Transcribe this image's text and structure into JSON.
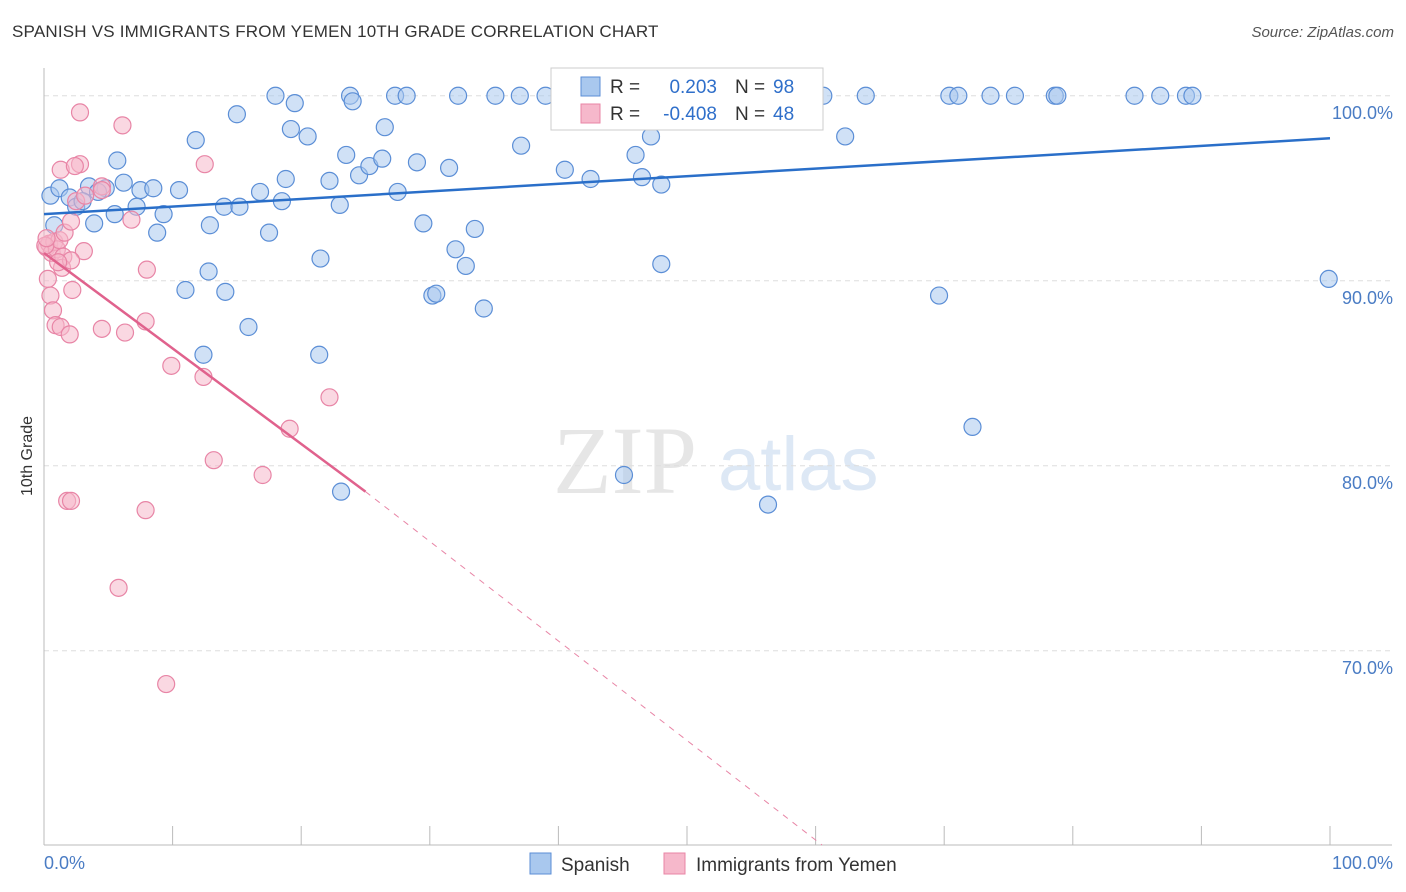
{
  "title": "SPANISH VS IMMIGRANTS FROM YEMEN 10TH GRADE CORRELATION CHART",
  "source": "Source: ZipAtlas.com",
  "watermark": {
    "zip": "ZIP",
    "atlas": "atlas"
  },
  "colors": {
    "spanish_fill": "#a9c8ee",
    "spanish_stroke": "#5b8ed6",
    "spanish_line": "#2a6fc9",
    "yemen_fill": "#f6b8cb",
    "yemen_stroke": "#e885a6",
    "yemen_line": "#e0628d",
    "axis_label": "#4a7cc4",
    "grid": "#dddddd"
  },
  "legend": {
    "r_label": "R =",
    "n_label": "N =",
    "spanish_r": "0.203",
    "spanish_n": "98",
    "yemen_r": "-0.408",
    "yemen_n": "48"
  },
  "bottom_legend": {
    "spanish": "Spanish",
    "yemen": "Immigrants from Yemen"
  },
  "chart_data": {
    "type": "scatter",
    "title": "SPANISH VS IMMIGRANTS FROM YEMEN 10TH GRADE CORRELATION CHART",
    "xlabel": "",
    "ylabel": "10th Grade",
    "xlim": [
      0,
      100
    ],
    "ylim": [
      59.5,
      101.5
    ],
    "x_tick_labels": [
      "0.0%",
      "100.0%"
    ],
    "y_ticks": [
      {
        "value": 100,
        "label": "100.0%"
      },
      {
        "value": 90,
        "label": "90.0%"
      },
      {
        "value": 80,
        "label": "80.0%"
      },
      {
        "value": 70,
        "label": "70.0%"
      }
    ],
    "grid": true,
    "legend_position": "top-center",
    "series": [
      {
        "name": "Spanish",
        "r": 0.203,
        "n": 98,
        "trend": {
          "x": [
            0,
            100
          ],
          "y": [
            93.6,
            97.7
          ]
        },
        "points": [
          [
            0.5,
            94.6
          ],
          [
            1.2,
            95.0
          ],
          [
            2.0,
            94.5
          ],
          [
            3.5,
            95.1
          ],
          [
            4.8,
            95.0
          ],
          [
            2.5,
            94.0
          ],
          [
            3.0,
            94.3
          ],
          [
            4.2,
            94.8
          ],
          [
            5.5,
            93.6
          ],
          [
            6.2,
            95.3
          ],
          [
            7.5,
            94.9
          ],
          [
            8.5,
            95.0
          ],
          [
            9.3,
            93.6
          ],
          [
            10.5,
            94.9
          ],
          [
            7.2,
            94.0
          ],
          [
            3.9,
            93.1
          ],
          [
            5.7,
            96.5
          ],
          [
            8.8,
            92.6
          ],
          [
            11.8,
            97.6
          ],
          [
            12.9,
            93.0
          ],
          [
            14.0,
            94.0
          ],
          [
            15.2,
            94.0
          ],
          [
            15.0,
            99.0
          ],
          [
            16.8,
            94.8
          ],
          [
            17.5,
            92.6
          ],
          [
            18.5,
            94.3
          ],
          [
            18.8,
            95.5
          ],
          [
            19.2,
            98.2
          ],
          [
            20.5,
            97.8
          ],
          [
            21.5,
            91.2
          ],
          [
            22.2,
            95.4
          ],
          [
            23.0,
            94.1
          ],
          [
            23.5,
            96.8
          ],
          [
            24.5,
            95.7
          ],
          [
            25.3,
            96.2
          ],
          [
            26.3,
            96.6
          ],
          [
            26.5,
            98.3
          ],
          [
            27.5,
            94.8
          ],
          [
            29.0,
            96.4
          ],
          [
            29.5,
            93.1
          ],
          [
            30.2,
            89.2
          ],
          [
            30.5,
            89.3
          ],
          [
            31.5,
            96.1
          ],
          [
            32.0,
            91.7
          ],
          [
            32.8,
            90.8
          ],
          [
            33.5,
            92.8
          ],
          [
            34.2,
            88.5
          ],
          [
            37.1,
            97.3
          ],
          [
            40.5,
            96.0
          ],
          [
            42.5,
            95.5
          ],
          [
            46.5,
            95.6
          ],
          [
            48.0,
            95.2
          ],
          [
            48.0,
            90.9
          ],
          [
            47.2,
            97.8
          ],
          [
            46.0,
            96.8
          ],
          [
            11.0,
            89.5
          ],
          [
            12.8,
            90.5
          ],
          [
            14.1,
            89.4
          ],
          [
            15.9,
            87.5
          ],
          [
            12.4,
            86.0
          ],
          [
            21.4,
            86.0
          ],
          [
            23.1,
            78.6
          ],
          [
            45.1,
            79.5
          ],
          [
            56.3,
            77.9
          ],
          [
            69.6,
            89.2
          ],
          [
            72.2,
            82.1
          ],
          [
            99.9,
            90.1
          ],
          [
            62.3,
            97.8
          ],
          [
            18.0,
            100.0
          ],
          [
            19.5,
            99.6
          ],
          [
            23.8,
            100.0
          ],
          [
            24.0,
            99.7
          ],
          [
            27.3,
            100.0
          ],
          [
            28.2,
            100.0
          ],
          [
            32.2,
            100.0
          ],
          [
            35.1,
            100.0
          ],
          [
            37.0,
            100.0
          ],
          [
            39.0,
            100.0
          ],
          [
            42.0,
            100.0
          ],
          [
            44.8,
            99.5
          ],
          [
            47.8,
            100.0
          ],
          [
            51.0,
            100.0
          ],
          [
            52.6,
            100.0
          ],
          [
            56.9,
            100.0
          ],
          [
            58.9,
            100.0
          ],
          [
            60.6,
            100.0
          ],
          [
            63.9,
            100.0
          ],
          [
            70.4,
            100.0
          ],
          [
            71.1,
            100.0
          ],
          [
            73.6,
            100.0
          ],
          [
            75.5,
            100.0
          ],
          [
            78.6,
            100.0
          ],
          [
            78.8,
            100.0
          ],
          [
            84.8,
            100.0
          ],
          [
            86.8,
            100.0
          ],
          [
            88.8,
            100.0
          ],
          [
            89.3,
            100.0
          ],
          [
            0.8,
            93.0
          ]
        ]
      },
      {
        "name": "Immigrants from Yemen",
        "r": -0.408,
        "n": 48,
        "trend": {
          "x": [
            0,
            25
          ],
          "y": [
            91.5,
            78.6
          ]
        },
        "trend_dashed": {
          "x": [
            25,
            60.5
          ],
          "y": [
            78.6,
            59.5
          ]
        },
        "points": [
          [
            0.2,
            91.8
          ],
          [
            0.4,
            92.0
          ],
          [
            0.6,
            91.5
          ],
          [
            0.8,
            92.1
          ],
          [
            1.0,
            91.7
          ],
          [
            1.2,
            92.2
          ],
          [
            1.5,
            91.3
          ],
          [
            0.3,
            90.1
          ],
          [
            0.5,
            89.2
          ],
          [
            0.7,
            88.4
          ],
          [
            0.9,
            87.6
          ],
          [
            1.3,
            87.5
          ],
          [
            2.0,
            87.1
          ],
          [
            2.2,
            89.5
          ],
          [
            1.4,
            90.7
          ],
          [
            1.6,
            92.6
          ],
          [
            2.1,
            93.2
          ],
          [
            2.5,
            94.3
          ],
          [
            2.8,
            96.3
          ],
          [
            1.3,
            96.0
          ],
          [
            2.4,
            96.2
          ],
          [
            2.8,
            99.1
          ],
          [
            3.2,
            94.6
          ],
          [
            4.5,
            95.1
          ],
          [
            4.5,
            94.9
          ],
          [
            6.1,
            98.4
          ],
          [
            6.8,
            93.3
          ],
          [
            3.1,
            91.6
          ],
          [
            2.1,
            91.1
          ],
          [
            4.5,
            87.4
          ],
          [
            6.3,
            87.2
          ],
          [
            7.9,
            87.8
          ],
          [
            8.0,
            90.6
          ],
          [
            9.9,
            85.4
          ],
          [
            12.4,
            84.8
          ],
          [
            12.5,
            96.3
          ],
          [
            13.2,
            80.3
          ],
          [
            17.0,
            79.5
          ],
          [
            19.1,
            82.0
          ],
          [
            22.2,
            83.7
          ],
          [
            1.8,
            78.1
          ],
          [
            2.1,
            78.1
          ],
          [
            7.9,
            77.6
          ],
          [
            5.8,
            73.4
          ],
          [
            9.5,
            68.2
          ],
          [
            0.1,
            91.9
          ],
          [
            0.2,
            92.3
          ],
          [
            1.1,
            91.0
          ]
        ]
      }
    ]
  }
}
